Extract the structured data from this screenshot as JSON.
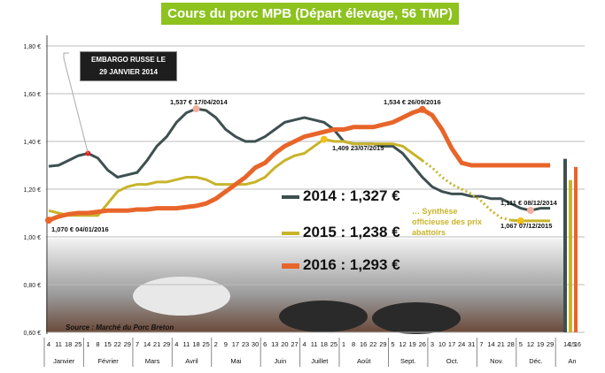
{
  "chart_data": {
    "type": "line",
    "title": "Cours du porc MPB (Départ élevage, 56 TMP)",
    "source": "Source : Marché du Porc Breton",
    "yticks": [
      "0,60 €",
      "0,80 €",
      "1,00 €",
      "1,20 €",
      "1,40 €",
      "1,60 €",
      "1,80 €"
    ],
    "ylim": [
      0.6,
      1.8
    ],
    "grid": true,
    "categories": [
      "4",
      "11",
      "18",
      "25",
      "1",
      "8",
      "15",
      "22",
      "29",
      "7",
      "14",
      "21",
      "29",
      "4",
      "11",
      "18",
      "25",
      "2",
      "9",
      "17",
      "23",
      "30",
      "6",
      "13",
      "20",
      "27",
      "4",
      "11",
      "18",
      "25",
      "1",
      "8",
      "16",
      "22",
      "29",
      "5",
      "12",
      "19",
      "26",
      "3",
      "10",
      "17",
      "24",
      "31",
      "7",
      "14",
      "21",
      "28",
      "5",
      "12",
      "19",
      "29"
    ],
    "months": [
      "Janvier",
      "Février",
      "Mars",
      "Avril",
      "Mai",
      "Juin",
      "Juillet",
      "Août",
      "Sept.",
      "Oct.",
      "Nov.",
      "Déc."
    ],
    "month_weeks": [
      4,
      5,
      4,
      4,
      5,
      4,
      4,
      5,
      4,
      5,
      4,
      4
    ],
    "annual_label": "An",
    "annual_ticks": [
      "14",
      "15",
      "16"
    ],
    "series": [
      {
        "name": "2014",
        "color": "#3e5050",
        "annual": 1.327,
        "legend": "2014 : 1,327 €",
        "values": [
          1.296,
          1.3,
          1.32,
          1.34,
          1.35,
          1.33,
          1.28,
          1.25,
          1.26,
          1.27,
          1.32,
          1.38,
          1.42,
          1.48,
          1.52,
          1.537,
          1.53,
          1.5,
          1.45,
          1.42,
          1.4,
          1.4,
          1.42,
          1.45,
          1.48,
          1.49,
          1.5,
          1.49,
          1.48,
          1.45,
          1.4,
          1.39,
          1.39,
          1.39,
          1.38,
          1.38,
          1.35,
          1.3,
          1.25,
          1.21,
          1.19,
          1.18,
          1.18,
          1.17,
          1.17,
          1.16,
          1.16,
          1.14,
          1.12,
          1.111,
          1.12,
          1.12
        ]
      },
      {
        "name": "2015",
        "color": "#c8b42a",
        "annual": 1.238,
        "legend": "2015 : 1,238 €",
        "values": [
          1.11,
          1.1,
          1.09,
          1.09,
          1.09,
          1.09,
          1.14,
          1.19,
          1.21,
          1.22,
          1.22,
          1.23,
          1.23,
          1.24,
          1.25,
          1.25,
          1.24,
          1.22,
          1.22,
          1.22,
          1.22,
          1.23,
          1.25,
          1.29,
          1.32,
          1.34,
          1.35,
          1.38,
          1.409,
          1.4,
          1.4,
          1.39,
          1.39,
          1.39,
          1.39,
          1.39,
          1.38,
          1.35,
          1.32,
          1.29,
          1.25,
          1.22,
          1.2,
          1.18,
          1.15,
          1.11,
          1.08,
          1.07,
          1.067,
          1.067,
          1.067,
          1.067
        ],
        "dotted_from_week": 38,
        "dotted_to_week": 47
      },
      {
        "name": "2016",
        "color": "#e8652a",
        "annual": 1.293,
        "legend": "2016 : 1,293 €",
        "values": [
          1.07,
          1.085,
          1.095,
          1.1,
          1.1,
          1.105,
          1.11,
          1.11,
          1.11,
          1.115,
          1.115,
          1.12,
          1.12,
          1.12,
          1.125,
          1.13,
          1.14,
          1.16,
          1.19,
          1.22,
          1.25,
          1.29,
          1.31,
          1.35,
          1.38,
          1.4,
          1.42,
          1.43,
          1.44,
          1.45,
          1.45,
          1.46,
          1.46,
          1.46,
          1.47,
          1.48,
          1.5,
          1.52,
          1.534,
          1.51,
          1.45,
          1.37,
          1.31,
          1.3,
          1.3,
          1.3,
          1.3,
          1.3,
          1.3,
          1.3,
          1.3,
          1.3
        ]
      }
    ],
    "annotations": [
      {
        "text": "EMBARGO RUSSE LE 29 JANVIER 2014",
        "line1": "EMBARGO RUSSE LE",
        "line2": "29 JANVIER 2014",
        "series": 0,
        "week": 4
      },
      {
        "text": "1,537 € 17/04/2014",
        "series": 0,
        "week": 15
      },
      {
        "text": "1,534 € 26/09/2016",
        "series": 2,
        "week": 38
      },
      {
        "text": "1,409 23/07/2015",
        "series": 1,
        "week": 28
      },
      {
        "text": "1,070 € 04/01/2016",
        "series": 2,
        "week": 0
      },
      {
        "text": "1,111 € 08/12/2014",
        "series": 0,
        "week": 49
      },
      {
        "text": "1,067 07/12/2015",
        "series": 1,
        "week": 48
      },
      {
        "text": "… Synthèse officieuse des prix abattoirs"
      }
    ]
  }
}
